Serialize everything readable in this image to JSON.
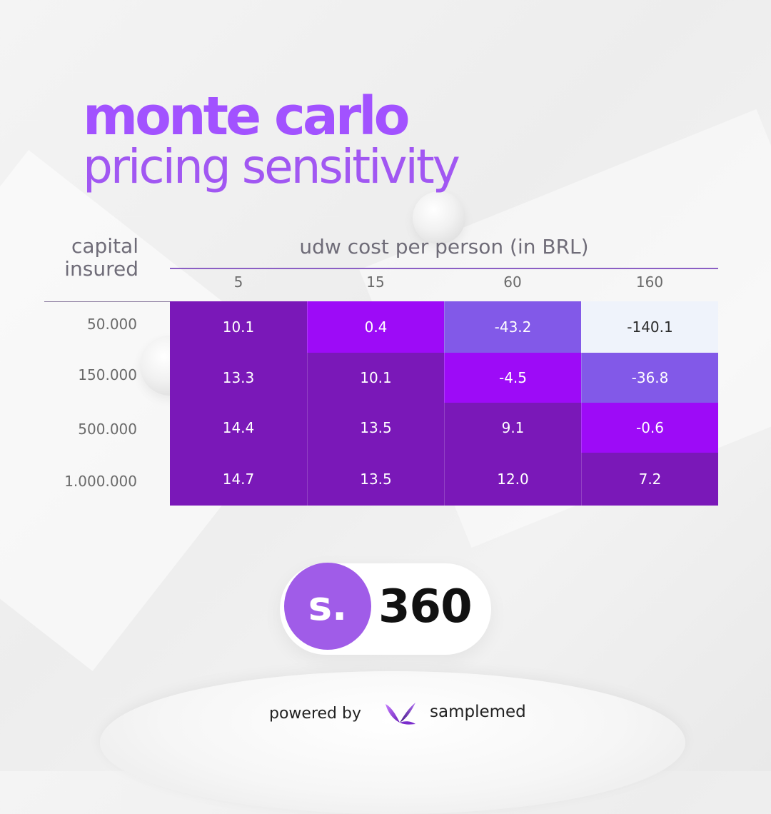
{
  "title": {
    "line1": "monte carlo",
    "line2": "pricing sensitivity"
  },
  "chart_data": {
    "type": "heatmap",
    "row_axis_label": [
      "capital",
      "insured"
    ],
    "column_axis_label": "udw cost per person (in BRL)",
    "columns": [
      "5",
      "15",
      "60",
      "160"
    ],
    "rows": [
      "50.000",
      "150.000",
      "500.000",
      "1.000.000"
    ],
    "values": [
      [
        10.1,
        0.4,
        -43.2,
        -140.1
      ],
      [
        13.3,
        10.1,
        -4.5,
        -36.8
      ],
      [
        14.4,
        13.5,
        9.1,
        -0.6
      ],
      [
        14.7,
        13.5,
        12.0,
        7.2
      ]
    ],
    "value_labels": [
      [
        "10.1",
        "0.4",
        "-43.2",
        "-140.1"
      ],
      [
        "13.3",
        "10.1",
        "-4.5",
        "-36.8"
      ],
      [
        "14.4",
        "13.5",
        "9.1",
        "-0.6"
      ],
      [
        "14.7",
        "13.5",
        "12.0",
        "7.2"
      ]
    ],
    "color_scale": {
      "high": "#7a18b8",
      "near_zero": "#9d0bf7",
      "moderate_negative": "#8259e8",
      "very_negative": "#eff3fb"
    },
    "legend": "none",
    "grid": false
  },
  "brand": {
    "badge_letter": "s.",
    "badge_number": "360",
    "badge_color": "#a05ce8",
    "powered_by": "powered by",
    "company": "samplemed",
    "logo_icon": "samplemed-wing-logo"
  }
}
